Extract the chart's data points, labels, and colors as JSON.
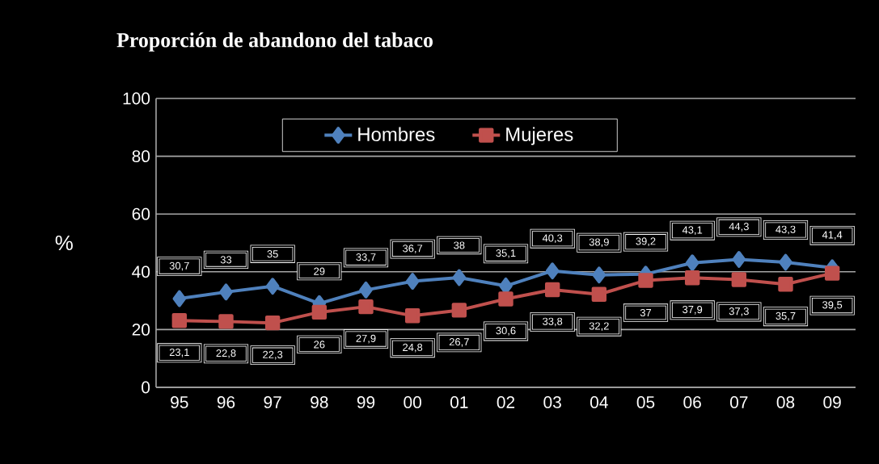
{
  "chart_data": {
    "type": "line",
    "title": "Proporción de abandono del tabaco",
    "ylabel": "%",
    "categories": [
      "95",
      "96",
      "97",
      "98",
      "99",
      "00",
      "01",
      "02",
      "03",
      "04",
      "05",
      "06",
      "07",
      "08",
      "09"
    ],
    "series": [
      {
        "name": "Hombres",
        "color": "#4f81bd",
        "marker": "diamond",
        "values": [
          30.7,
          33,
          35,
          29,
          33.7,
          36.7,
          38,
          35.1,
          40.3,
          38.9,
          39.2,
          43.1,
          44.3,
          43.3,
          41.4
        ],
        "value_labels": [
          "30,7",
          "33",
          "35",
          "29",
          "33,7",
          "36,7",
          "38",
          "35,1",
          "40,3",
          "38,9",
          "39,2",
          "43,1",
          "44,3",
          "43,3",
          "41,4"
        ]
      },
      {
        "name": "Mujeres",
        "color": "#c0504d",
        "marker": "square",
        "values": [
          23.1,
          22.8,
          22.3,
          26,
          27.9,
          24.8,
          26.7,
          30.6,
          33.8,
          32.2,
          37,
          37.9,
          37.3,
          35.7,
          39.5
        ],
        "value_labels": [
          "23,1",
          "22,8",
          "22,3",
          "26",
          "27,9",
          "24,8",
          "26,7",
          "30,6",
          "33,8",
          "32,2",
          "37",
          "37,9",
          "37,3",
          "35,7",
          "39,5"
        ]
      }
    ],
    "ylim": [
      0,
      100
    ],
    "yticks": [
      0,
      20,
      40,
      60,
      80,
      100
    ],
    "grid": "y",
    "legend": "top"
  }
}
